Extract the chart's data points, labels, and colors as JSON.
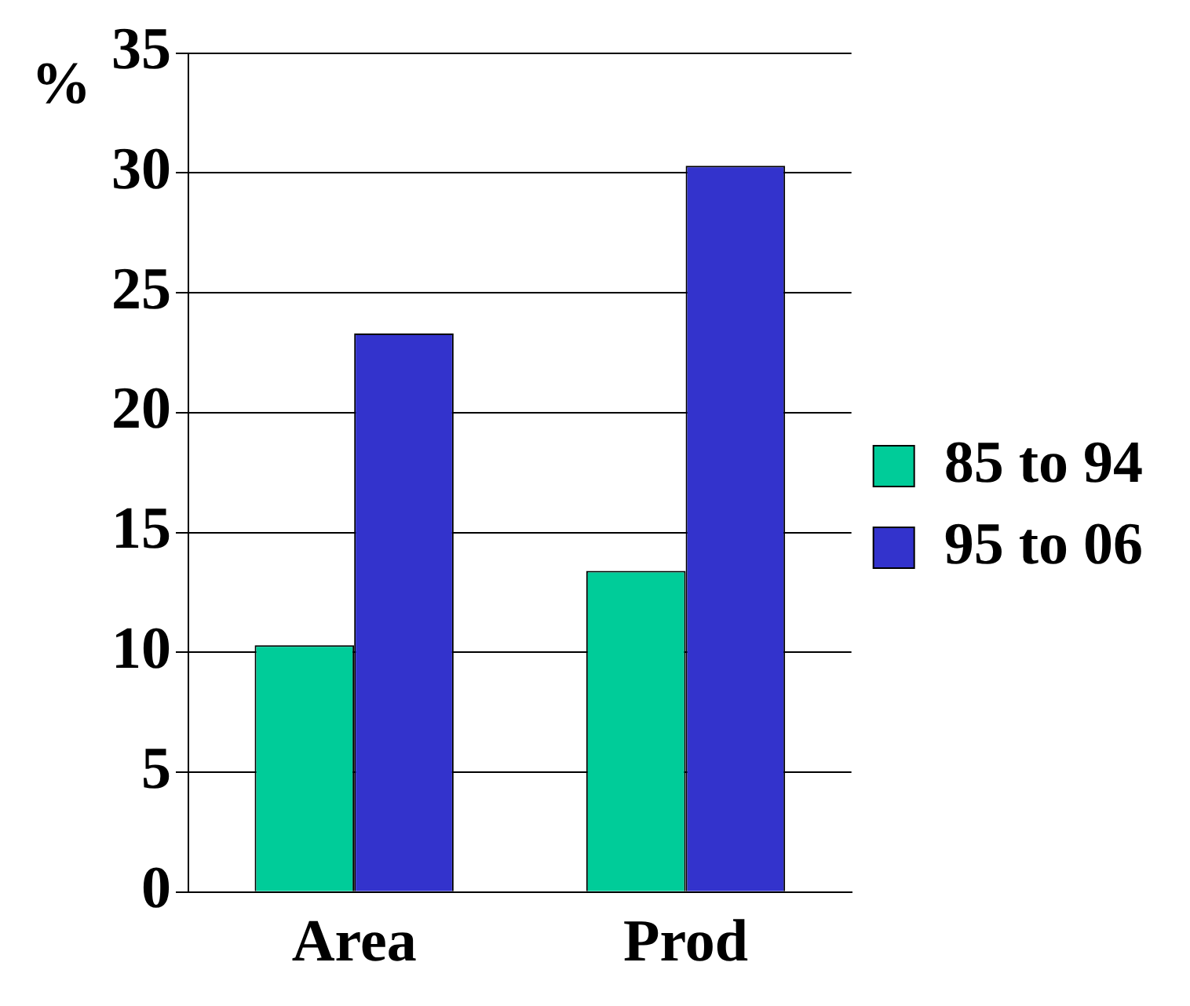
{
  "chart_data": {
    "type": "bar",
    "ylabel": "%",
    "categories": [
      "Area",
      "Prod"
    ],
    "series": [
      {
        "name": "85 to 94",
        "color": "#00cc99",
        "values": [
          10.3,
          13.4
        ]
      },
      {
        "name": "95 to 06",
        "color": "#3333cc",
        "values": [
          23.3,
          30.3
        ]
      }
    ],
    "ylim": [
      0,
      35
    ],
    "yticks": [
      0,
      5,
      10,
      15,
      20,
      25,
      30,
      35
    ],
    "grid": "y",
    "legend": "right"
  }
}
